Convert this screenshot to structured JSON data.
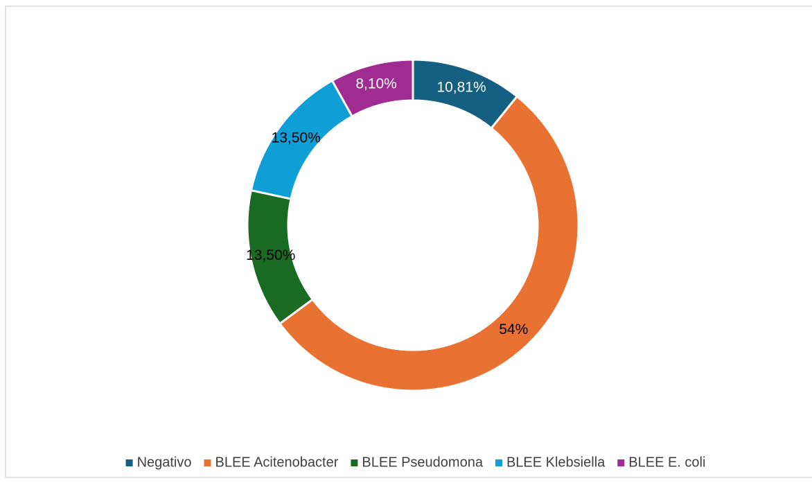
{
  "chart_data": {
    "type": "donut",
    "categories": [
      "Negativo",
      "BLEE Acitenobacter",
      "BLEE Pseudomona",
      "BLEE Klebsiella",
      "BLEE E. coli"
    ],
    "values": [
      10.81,
      54,
      13.5,
      13.5,
      8.1
    ],
    "value_labels": [
      "10,81%",
      "54%",
      "13,50%",
      "13,50%",
      "8,10%"
    ],
    "colors": [
      "#156082",
      "#e97132",
      "#196b24",
      "#0f9ed5",
      "#a02b93"
    ],
    "label_colors": [
      "#ffffff",
      "#000000",
      "#000000",
      "#000000",
      "#ffffff"
    ],
    "legend": "bottom"
  }
}
